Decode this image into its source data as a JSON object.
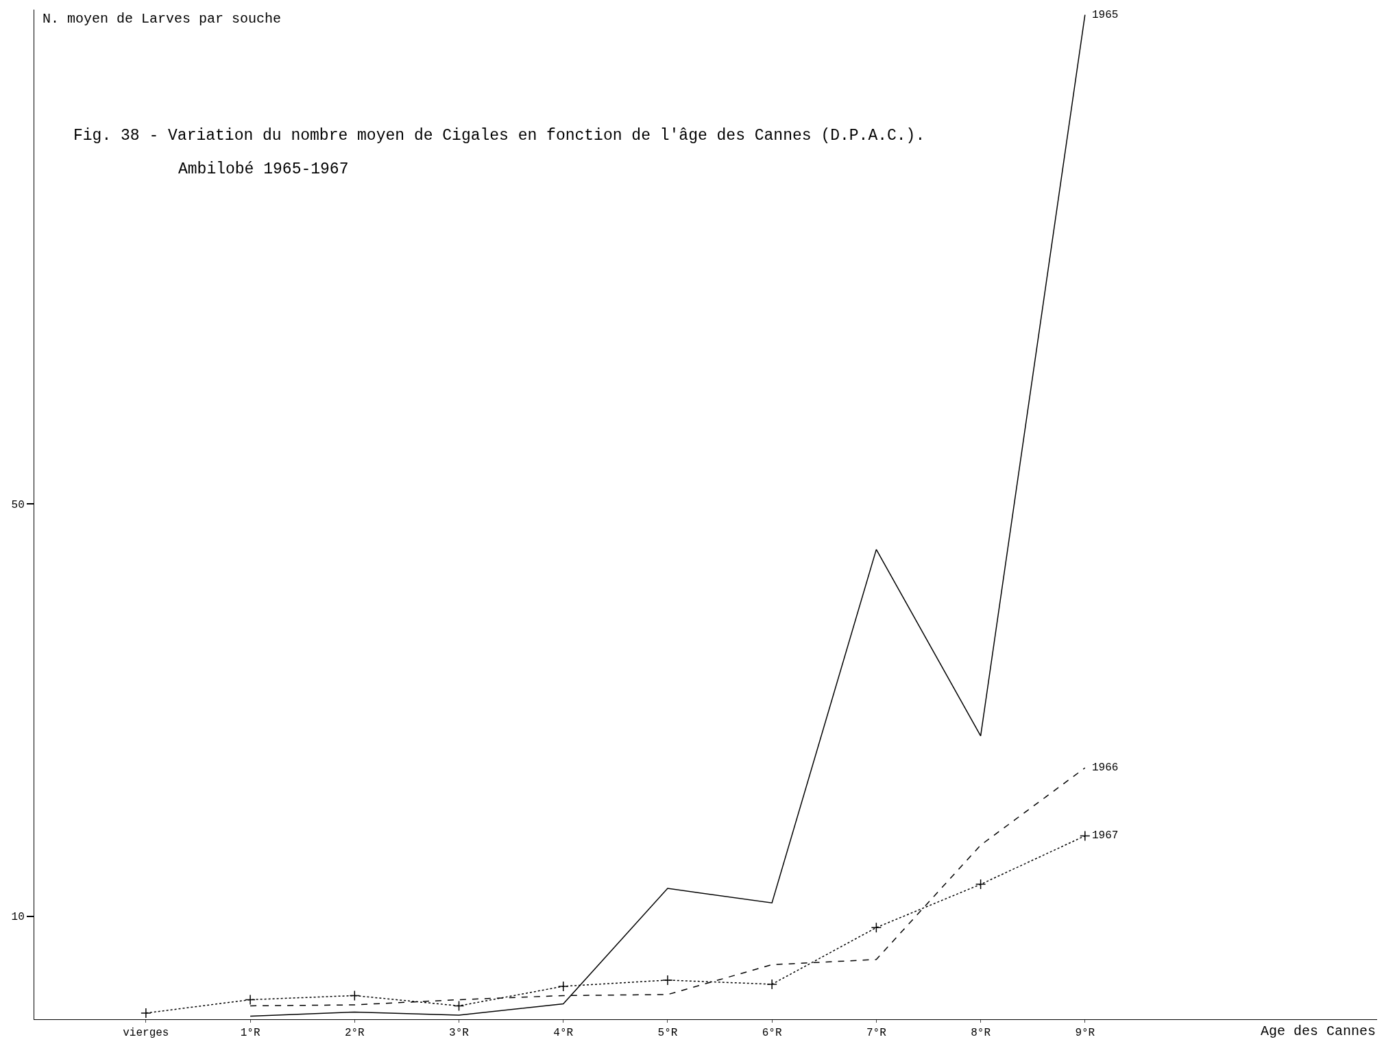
{
  "chart_data": {
    "type": "line",
    "title": "Fig. 38 - Variation du nombre moyen de Cigales en fonction de l'âge des Cannes (D.P.A.C.).",
    "subtitle": "Ambilobé 1965-1967",
    "annotations": [
      "Age des Cannes"
    ],
    "ylabel": "N. moyen de Larves par souche",
    "categories": [
      "vierges",
      "1°R",
      "2°R",
      "3°R",
      "4°R",
      "5°R",
      "6°R",
      "7°R",
      "8°R",
      "9°R"
    ],
    "series": [
      {
        "name": "1965",
        "color": "#000000",
        "line_style": "solid",
        "marker": "none",
        "values": [
          null,
          0.3,
          0.7,
          0.4,
          1.5,
          12.7,
          11.3,
          45.6,
          27.5,
          97.5
        ]
      },
      {
        "name": "1966",
        "color": "#000000",
        "line_style": "dashed",
        "marker": "none",
        "values": [
          null,
          1.3,
          1.4,
          1.9,
          2.3,
          2.4,
          5.3,
          5.8,
          16.9,
          24.4
        ]
      },
      {
        "name": "1967",
        "color": "#000000",
        "line_style": "dotted",
        "marker": "cross",
        "values": [
          0.6,
          1.9,
          2.3,
          1.3,
          3.2,
          3.8,
          3.4,
          8.9,
          13.1,
          17.8
        ]
      }
    ],
    "ylim": [
      0,
      98
    ],
    "yticks": [
      10,
      50
    ],
    "legend": false
  }
}
